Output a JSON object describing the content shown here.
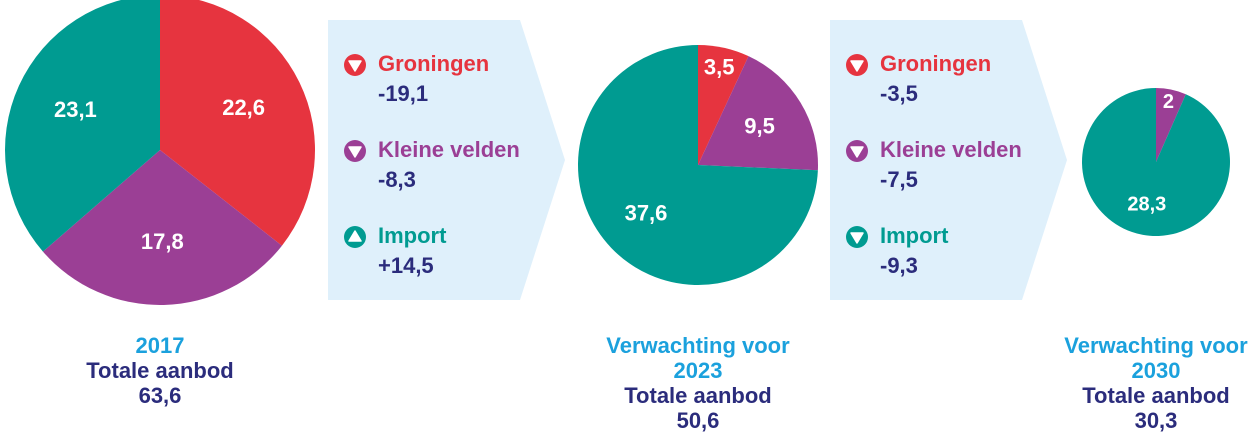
{
  "chart_data": [
    {
      "type": "pie",
      "title": "2017",
      "subtitle": "Totale aanbod",
      "total": {
        "value": 63.6,
        "label": "63,6"
      },
      "categories": [
        "Groningen",
        "Kleine velden",
        "Import"
      ],
      "values": [
        22.6,
        17.8,
        23.1
      ],
      "value_labels": [
        "22,6",
        "17,8",
        "23,1"
      ],
      "colors": [
        "#e6343f",
        "#9b3f95",
        "#009b91"
      ]
    },
    {
      "type": "pie",
      "title": "Verwachting voor 2023",
      "subtitle": "Totale aanbod",
      "total": {
        "value": 50.6,
        "label": "50,6"
      },
      "categories": [
        "Groningen",
        "Kleine velden",
        "Import"
      ],
      "values": [
        3.5,
        9.5,
        37.6
      ],
      "value_labels": [
        "3,5",
        "9,5",
        "37,6"
      ],
      "colors": [
        "#e6343f",
        "#9b3f95",
        "#009b91"
      ]
    },
    {
      "type": "pie",
      "title": "Verwachting voor 2030",
      "subtitle": "Totale aanbod",
      "total": {
        "value": 30.3,
        "label": "30,3"
      },
      "categories": [
        "Kleine velden",
        "Import"
      ],
      "values": [
        2,
        28.3
      ],
      "value_labels": [
        "2",
        "28,3"
      ],
      "colors": [
        "#9b3f95",
        "#009b91"
      ]
    }
  ],
  "changes": [
    {
      "items": [
        {
          "name": "Groningen",
          "color": "#e6343f",
          "value": -19.1,
          "label": "-19,1"
        },
        {
          "name": "Kleine velden",
          "color": "#9b3f95",
          "value": -8.3,
          "label": "-8,3"
        },
        {
          "name": "Import",
          "color": "#009b91",
          "value": 14.5,
          "label": "+14,5"
        }
      ]
    },
    {
      "items": [
        {
          "name": "Groningen",
          "color": "#e6343f",
          "value": -3.5,
          "label": "-3,5"
        },
        {
          "name": "Kleine velden",
          "color": "#9b3f95",
          "value": -7.5,
          "label": "-7,5"
        },
        {
          "name": "Import",
          "color": "#009b91",
          "value": -9.3,
          "label": "-9,3"
        }
      ]
    }
  ]
}
